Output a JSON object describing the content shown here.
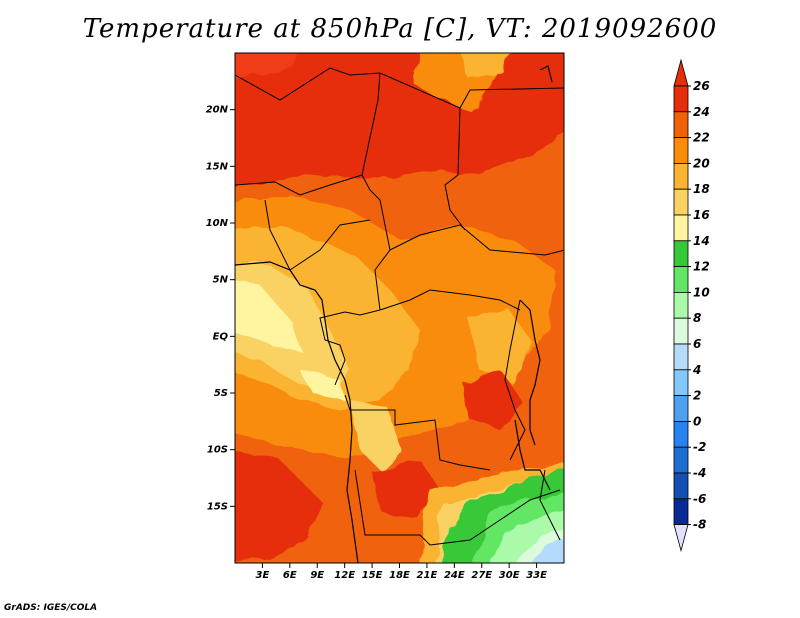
{
  "title": "Temperature at 850hPa [C], VT: 2019092600",
  "credit": "GrADS: IGES/COLA",
  "map": {
    "lon_range": [
      0,
      36
    ],
    "lat_range": [
      -20,
      25
    ],
    "lat_ticks": [
      {
        "value": 20,
        "label": "20N"
      },
      {
        "value": 15,
        "label": "15N"
      },
      {
        "value": 10,
        "label": "10N"
      },
      {
        "value": 5,
        "label": "5N"
      },
      {
        "value": 0,
        "label": "EQ"
      },
      {
        "value": -5,
        "label": "5S"
      },
      {
        "value": -10,
        "label": "10S"
      },
      {
        "value": -15,
        "label": "15S"
      }
    ],
    "lon_ticks": [
      {
        "value": 3,
        "label": "3E"
      },
      {
        "value": 6,
        "label": "6E"
      },
      {
        "value": 9,
        "label": "9E"
      },
      {
        "value": 12,
        "label": "12E"
      },
      {
        "value": 15,
        "label": "15E"
      },
      {
        "value": 18,
        "label": "18E"
      },
      {
        "value": 21,
        "label": "21E"
      },
      {
        "value": 24,
        "label": "24E"
      },
      {
        "value": 27,
        "label": "27E"
      },
      {
        "value": 30,
        "label": "30E"
      },
      {
        "value": 33,
        "label": "33E"
      }
    ]
  },
  "colorbar": {
    "levels": [
      {
        "value": "26",
        "color": "#f03c14"
      },
      {
        "value": "24",
        "color": "#e62e0a"
      },
      {
        "value": "22",
        "color": "#f0620a"
      },
      {
        "value": "20",
        "color": "#fa8c0a"
      },
      {
        "value": "18",
        "color": "#fab432"
      },
      {
        "value": "16",
        "color": "#fad264"
      },
      {
        "value": "14",
        "color": "#fff5a0"
      },
      {
        "value": "12",
        "color": "#37c837"
      },
      {
        "value": "10",
        "color": "#64e664"
      },
      {
        "value": "8",
        "color": "#aafaaa"
      },
      {
        "value": "6",
        "color": "#dcfadc"
      },
      {
        "value": "4",
        "color": "#b4dcfa"
      },
      {
        "value": "2",
        "color": "#82c8fa"
      },
      {
        "value": "0",
        "color": "#50a0f0"
      },
      {
        "value": "-2",
        "color": "#2882f0"
      },
      {
        "value": "-4",
        "color": "#1e6ed2"
      },
      {
        "value": "-6",
        "color": "#1450b4"
      },
      {
        "value": "-8",
        "color": "#0a2896"
      }
    ],
    "top_triangle_color": "#e62e0a",
    "bottom_triangle_color": "#e1e1ff"
  }
}
